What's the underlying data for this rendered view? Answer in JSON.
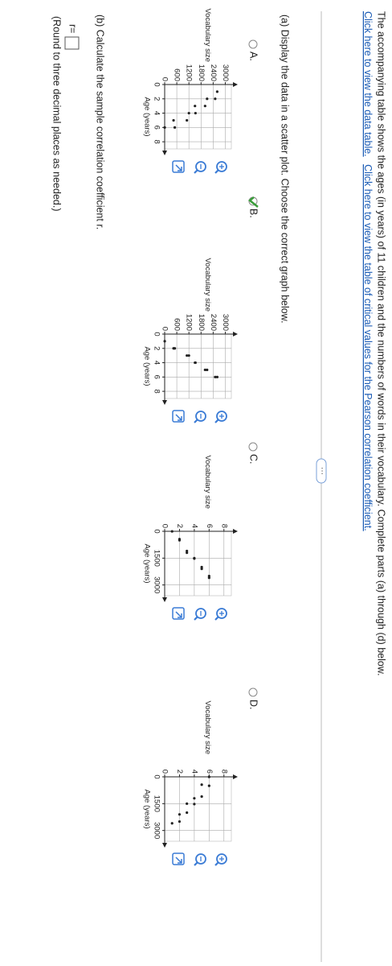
{
  "intro": "The accompanying table shows the ages (in years) of 11 children and the numbers of words in their vocabulary. Complete parts (a) through (d) below.",
  "links": [
    "Click here to view the data table.",
    "Click here to view the table of critical values for the Pearson correlation coefficient."
  ],
  "part_a": "(a) Display the data in a scatter plot. Choose the correct graph below.",
  "options": [
    "A.",
    "B.",
    "C.",
    "D."
  ],
  "selected_option": 1,
  "chart_data": [
    {
      "type": "scatter",
      "x_label": "Age (years)",
      "y_label": "Vocabulary size",
      "color": "#222222",
      "x": [
        1,
        2,
        3,
        4,
        5,
        6,
        3,
        5,
        2,
        4,
        6
      ],
      "y": [
        2600,
        2100,
        1500,
        1200,
        440,
        3,
        2000,
        1100,
        2500,
        1525,
        500
      ],
      "xlim": [
        0,
        9
      ],
      "ylim": [
        0,
        3300
      ],
      "xticks": [
        0,
        2,
        4,
        6,
        8
      ],
      "yticks": [
        0,
        600,
        1200,
        1800,
        2400,
        3000
      ],
      "grid": true
    },
    {
      "type": "scatter",
      "x_label": "Age (years)",
      "y_label": "Vocabulary size",
      "color": "#222222",
      "x": [
        1,
        2,
        3,
        4,
        5,
        6,
        3,
        5,
        2,
        4,
        6
      ],
      "y": [
        3,
        440,
        1200,
        1500,
        2100,
        2600,
        1100,
        2000,
        500,
        1525,
        2500
      ],
      "xlim": [
        0,
        9
      ],
      "ylim": [
        0,
        3300
      ],
      "xticks": [
        0,
        2,
        4,
        6,
        8
      ],
      "yticks": [
        0,
        600,
        1200,
        1800,
        2400,
        3000
      ],
      "grid": true
    },
    {
      "type": "scatter",
      "x_label": "Age (years)",
      "y_label": "Vocabulary size",
      "color": "#222222",
      "x": [
        3,
        440,
        1200,
        1500,
        2100,
        2600,
        1100,
        2000,
        500,
        1525,
        2500
      ],
      "y": [
        1,
        2,
        3,
        4,
        5,
        6,
        3,
        5,
        2,
        4,
        6
      ],
      "xlim": [
        0,
        3600
      ],
      "ylim": [
        0,
        9
      ],
      "xticks": [
        0,
        1500,
        3000
      ],
      "yticks": [
        0,
        2,
        4,
        6,
        8
      ],
      "grid": true
    },
    {
      "type": "scatter",
      "x_label": "Age (years)",
      "y_label": "Vocabulary size",
      "color": "#222222",
      "x": [
        2600,
        2100,
        1500,
        1200,
        440,
        3,
        2000,
        1100,
        2500,
        1525,
        500
      ],
      "y": [
        1,
        2,
        3,
        4,
        5,
        6,
        3,
        5,
        2,
        4,
        6
      ],
      "xlim": [
        0,
        3600
      ],
      "ylim": [
        0,
        9
      ],
      "xticks": [
        0,
        1500,
        3000
      ],
      "yticks": [
        0,
        2,
        4,
        6,
        8
      ],
      "grid": true
    }
  ],
  "part_b": "(b) Calculate the sample correlation coefficient r.",
  "answer_label": "r=",
  "note": "(Round to three decimal places as needed.)"
}
